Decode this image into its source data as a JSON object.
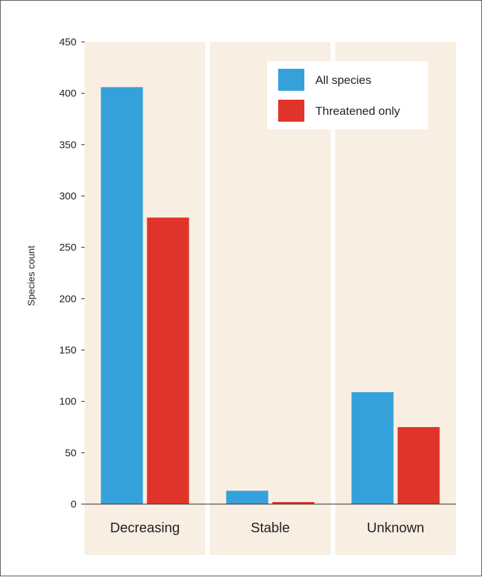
{
  "chart_data": {
    "type": "bar",
    "categories": [
      "Decreasing",
      "Stable",
      "Unknown"
    ],
    "series": [
      {
        "name": "All species",
        "values": [
          406,
          13,
          109
        ],
        "color": "#35a1db"
      },
      {
        "name": "Threatened only",
        "values": [
          279,
          2,
          75
        ],
        "color": "#e0342b"
      }
    ],
    "title": "",
    "xlabel": "",
    "ylabel": "Species count",
    "ylim": [
      0,
      450
    ],
    "yticks": [
      0,
      50,
      100,
      150,
      200,
      250,
      300,
      350,
      400,
      450
    ],
    "grid": false,
    "legend_position": "top-right",
    "panel_color": "#f8eee2"
  }
}
